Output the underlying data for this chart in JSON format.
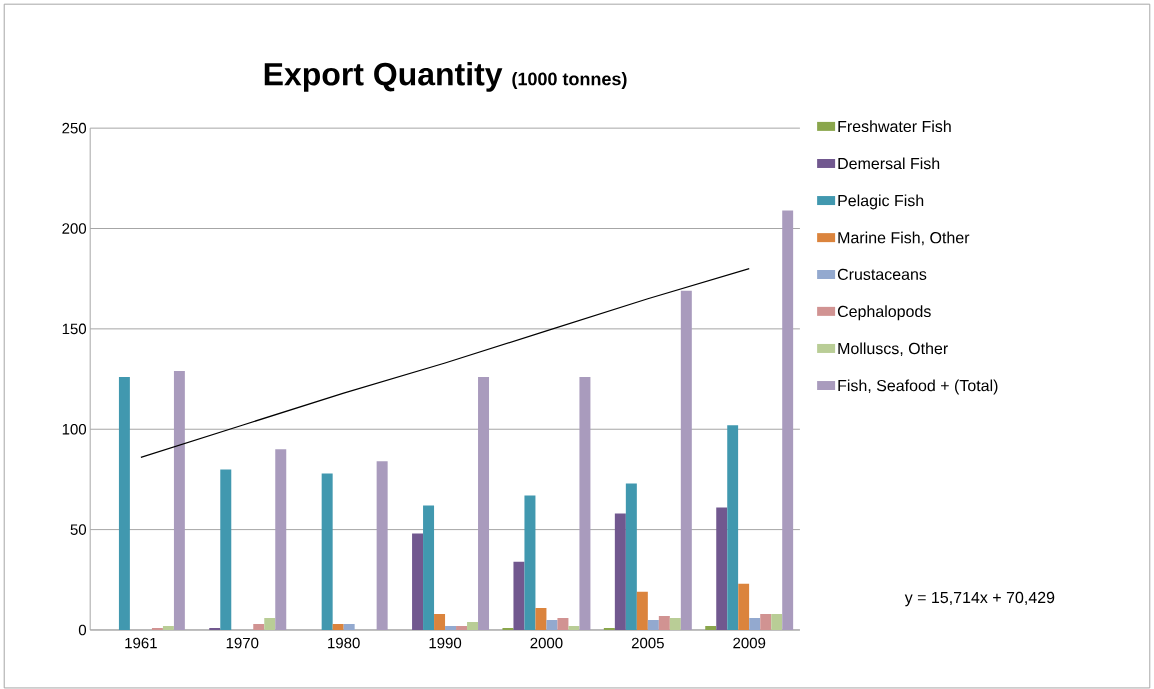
{
  "chart_data": {
    "type": "bar",
    "title": "Export Quantity",
    "subtitle": "(1000 tonnes)",
    "categories": [
      "1961",
      "1970",
      "1980",
      "1990",
      "2000",
      "2005",
      "2009"
    ],
    "series": [
      {
        "name": "Freshwater Fish",
        "color": "#8aa64c",
        "values": [
          0,
          0,
          0,
          0,
          1,
          1,
          2
        ]
      },
      {
        "name": "Demersal Fish",
        "color": "#71588f",
        "values": [
          0,
          1,
          0,
          48,
          34,
          58,
          61
        ]
      },
      {
        "name": "Pelagic Fish",
        "color": "#4198af",
        "values": [
          126,
          80,
          78,
          62,
          67,
          73,
          102
        ]
      },
      {
        "name": "Marine Fish, Other",
        "color": "#db843d",
        "values": [
          0,
          0,
          3,
          8,
          11,
          19,
          23
        ]
      },
      {
        "name": "Crustaceans",
        "color": "#93a9cf",
        "values": [
          0,
          0,
          3,
          2,
          5,
          5,
          6
        ]
      },
      {
        "name": "Cephalopods",
        "color": "#d19392",
        "values": [
          1,
          3,
          0,
          2,
          6,
          7,
          8
        ]
      },
      {
        "name": "Molluscs, Other",
        "color": "#b9cd96",
        "values": [
          2,
          6,
          0,
          4,
          2,
          6,
          8
        ]
      },
      {
        "name": "Fish, Seafood + (Total)",
        "color": "#a99bbd",
        "values": [
          129,
          90,
          84,
          126,
          126,
          169,
          209
        ]
      },
      {
        "type": "line",
        "color": "#000000",
        "values": [
          86,
          102,
          118,
          133,
          149,
          165,
          180
        ]
      }
    ],
    "annotations": [
      "y = 15,714x + 70,429"
    ],
    "ylim": [
      0,
      250
    ],
    "yticks": [
      0,
      50,
      100,
      150,
      200,
      250
    ],
    "grid": "y",
    "legend": "right"
  }
}
